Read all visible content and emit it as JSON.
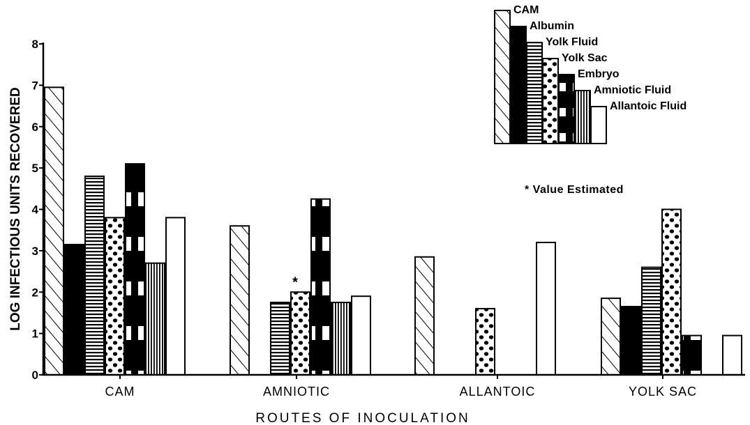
{
  "chart_data": {
    "type": "bar",
    "ylabel": "LOG INFECTIOUS UNITS RECOVERED",
    "xlabel": "ROUTES OF INOCULATION",
    "ylim": [
      0,
      8
    ],
    "yticks": [
      "0",
      "1",
      "2",
      "3",
      "4",
      "5",
      "6",
      "7",
      "8"
    ],
    "categories": [
      "CAM",
      "AMNIOTIC",
      "ALLANTOIC",
      "YOLK SAC"
    ],
    "legend_position": "top-right",
    "series": [
      {
        "name": "CAM",
        "pattern": "diagonal-hatch",
        "values": [
          6.95,
          3.6,
          2.85,
          1.85
        ]
      },
      {
        "name": "Albumin",
        "pattern": "solid-black",
        "values": [
          3.15,
          null,
          null,
          1.65
        ]
      },
      {
        "name": "Yolk Fluid",
        "pattern": "horizontal-lines",
        "values": [
          4.8,
          1.75,
          null,
          2.6
        ]
      },
      {
        "name": "Yolk Sac",
        "pattern": "dots",
        "values": [
          3.8,
          2.0,
          1.6,
          4.0
        ]
      },
      {
        "name": "Embryo",
        "pattern": "black-white-blocks",
        "values": [
          5.1,
          4.25,
          null,
          0.95
        ]
      },
      {
        "name": "Amniotic Fluid",
        "pattern": "vertical-lines",
        "values": [
          2.7,
          1.75,
          null,
          null
        ]
      },
      {
        "name": "Allantoic Fluid",
        "pattern": "open-white",
        "values": [
          3.8,
          1.9,
          3.2,
          0.95
        ]
      }
    ],
    "annotations": [
      {
        "marker": "*",
        "category": "AMNIOTIC",
        "series": "Yolk Sac"
      },
      {
        "text": "* Value Estimated",
        "position": "right"
      }
    ]
  }
}
